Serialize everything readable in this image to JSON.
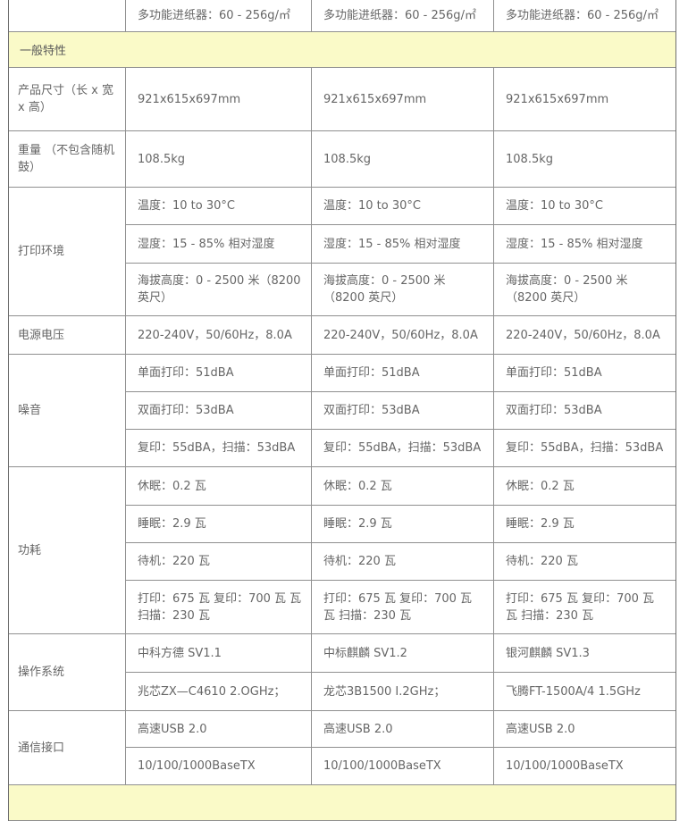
{
  "colors": {
    "section_header_bg": "#fafac8",
    "text": "#666666",
    "border_inner": "#8f8f8f",
    "border_outer": "#6e6e6e"
  },
  "table": {
    "partial_top_row": {
      "values": [
        "多功能进纸器：60 - 256g/㎡",
        "多功能进纸器：60 - 256g/㎡",
        "多功能进纸器：60 - 256g/㎡"
      ]
    },
    "section_header": {
      "label": "一般特性"
    },
    "row_groups": [
      {
        "label": "产品尺寸（长 x 宽 x 高）",
        "subrows": [
          {
            "values": [
              "921x615x697mm",
              "921x615x697mm",
              "921x615x697mm"
            ]
          }
        ]
      },
      {
        "label": "重量 （不包含随机鼓）",
        "subrows": [
          {
            "values": [
              "108.5kg",
              "108.5kg",
              "108.5kg"
            ]
          }
        ]
      },
      {
        "label": "打印环境",
        "subrows": [
          {
            "values": [
              "温度：10 to 30°C",
              "温度：10 to 30°C",
              "温度：10 to 30°C"
            ]
          },
          {
            "values": [
              "湿度：15 - 85% 相对湿度",
              "湿度：15 - 85% 相对湿度",
              "湿度：15 - 85% 相对湿度"
            ]
          },
          {
            "values": [
              "海拔高度：0 - 2500 米（8200 英尺）",
              "海拔高度：0 - 2500 米（8200 英尺）",
              "海拔高度：0 - 2500 米（8200 英尺）"
            ]
          }
        ]
      },
      {
        "label": "电源电压",
        "subrows": [
          {
            "values": [
              "220-240V，50/60Hz，8.0A",
              "220-240V，50/60Hz，8.0A",
              "220-240V，50/60Hz，8.0A"
            ]
          }
        ]
      },
      {
        "label": "噪音",
        "subrows": [
          {
            "values": [
              "单面打印：51dBA",
              "单面打印：51dBA",
              "单面打印：51dBA"
            ]
          },
          {
            "values": [
              "双面打印：53dBA",
              "双面打印：53dBA",
              "双面打印：53dBA"
            ]
          },
          {
            "values": [
              "复印：55dBA，扫描：53dBA",
              "复印：55dBA，扫描：53dBA",
              "复印：55dBA，扫描：53dBA"
            ]
          }
        ]
      },
      {
        "label": "功耗",
        "subrows": [
          {
            "values": [
              "休眠：0.2 瓦",
              "休眠：0.2 瓦",
              "休眠：0.2 瓦"
            ]
          },
          {
            "values": [
              "睡眠：2.9 瓦",
              "睡眠：2.9 瓦",
              "睡眠：2.9 瓦"
            ]
          },
          {
            "values": [
              "待机：220 瓦",
              "待机：220 瓦",
              "待机：220 瓦"
            ]
          },
          {
            "values": [
              "打印：675 瓦 复印：700 瓦 瓦 扫描：230 瓦",
              "打印：675 瓦 复印：700 瓦 瓦 扫描：230 瓦",
              "打印：675 瓦 复印：700 瓦 瓦 扫描：230 瓦"
            ]
          }
        ]
      },
      {
        "label": "操作系统",
        "subrows": [
          {
            "values": [
              "中科方德 SV1.1",
              "中标麒麟 SV1.2",
              "银河麒麟 SV1.3"
            ]
          },
          {
            "values": [
              "兆芯ZX—C4610 2.OGHz；",
              "龙芯3B1500 I.2GHz；",
              "飞腾FT-1500A/4 1.5GHz"
            ]
          }
        ]
      },
      {
        "label": "通信接口",
        "subrows": [
          {
            "values": [
              "高速USB 2.0",
              "高速USB 2.0",
              "高速USB 2.0"
            ]
          },
          {
            "values": [
              "10/100/1000BaseTX",
              "10/100/1000BaseTX",
              "10/100/1000BaseTX"
            ]
          }
        ]
      }
    ],
    "next_section_partial": {
      "label": ""
    }
  }
}
